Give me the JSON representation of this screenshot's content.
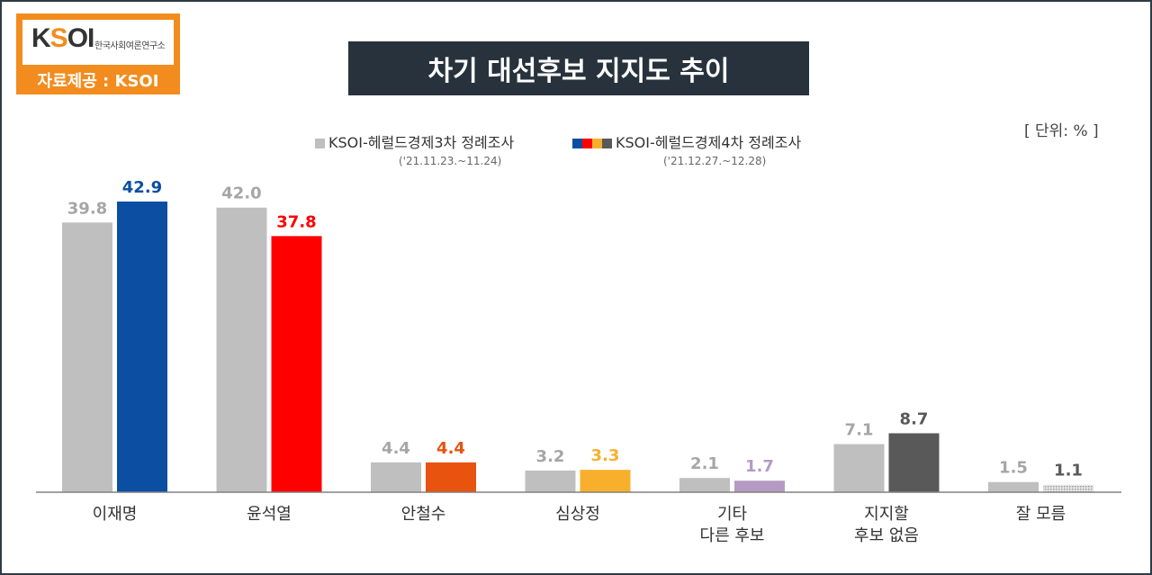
{
  "logo": {
    "mark": "KSOI",
    "subtitle": "한국사회여론연구소",
    "source": "자료제공 : KSOI"
  },
  "title": "차기 대선후보 지지도 추이",
  "unit": "[ 단위: % ]",
  "legend": [
    {
      "label": "KSOI-헤럴드경제3차 정례조사",
      "date": "('21.11.23.~11.24)"
    },
    {
      "label": "KSOI-헤럴드경제4차 정례조사",
      "date": "('21.12.27.~12.28)"
    }
  ],
  "colors": {
    "prev": "#bfbfbf",
    "prev_label": "#a6a6a6",
    "lee": "#0b4ea2",
    "yoon": "#ff0000",
    "ahn": "#e85310",
    "sim": "#f8b02c",
    "other": "#b59bc4",
    "none": "#595959",
    "dontknow": "#d0d0d0"
  },
  "chart_data": {
    "type": "bar",
    "title": "차기 대선후보 지지도 추이",
    "categories": [
      "이재명",
      "윤석열",
      "안철수",
      "심상정",
      "기타\n다른 후보",
      "지지할\n후보 없음",
      "잘 모름"
    ],
    "series": [
      {
        "name": "KSOI-헤럴드경제3차 정례조사",
        "values": [
          39.8,
          42.0,
          4.4,
          3.2,
          2.1,
          7.1,
          1.5
        ]
      },
      {
        "name": "KSOI-헤럴드경제4차 정례조사",
        "values": [
          42.9,
          37.8,
          4.4,
          3.3,
          1.7,
          8.7,
          1.1
        ]
      }
    ],
    "value_labels": {
      "s0": [
        "39.8",
        "42.0",
        "4.4",
        "3.2",
        "2.1",
        "7.1",
        "1.5"
      ],
      "s1": [
        "42.9",
        "37.8",
        "4.4",
        "3.3",
        "1.7",
        "8.7",
        "1.1"
      ]
    },
    "series2_colors": [
      "#0b4ea2",
      "#ff0000",
      "#e85310",
      "#f8b02c",
      "#b59bc4",
      "#595959",
      "#d0d0d0"
    ],
    "series2_label_colors": [
      "#0b4ea2",
      "#ff0000",
      "#e85310",
      "#f8b02c",
      "#b59bc4",
      "#595959",
      "#595959"
    ],
    "ylim": [
      0,
      45
    ],
    "grid": false,
    "legend_position": "top-center"
  }
}
